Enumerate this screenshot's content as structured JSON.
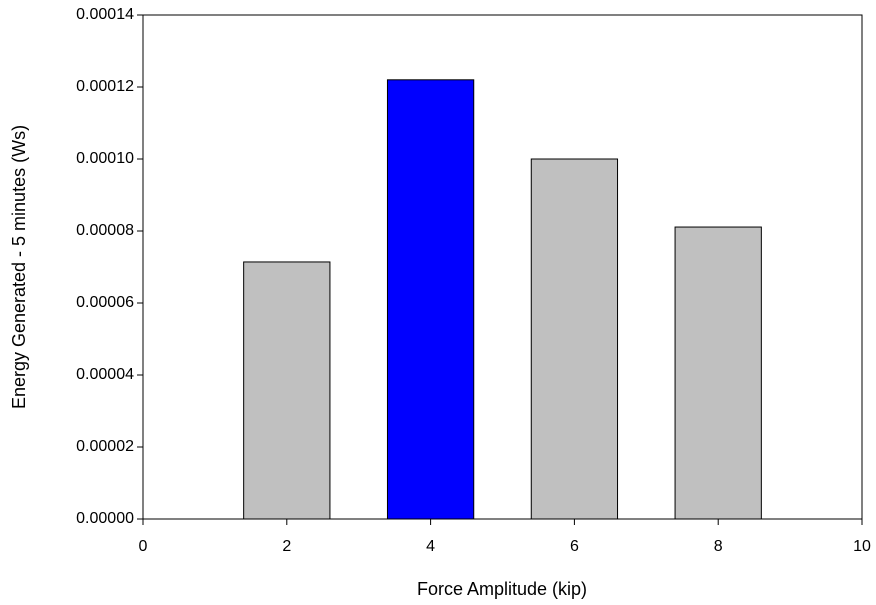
{
  "chart_data": {
    "type": "bar",
    "x_label": "Force Amplitude (kip)",
    "y_label": "Energy Generated - 5 minutes (Ws)",
    "x": [
      2,
      4,
      6,
      8
    ],
    "values": [
      7.14e-05,
      0.000122,
      0.0001,
      8.11e-05
    ],
    "colors": [
      "#c0c0c0",
      "#0000ff",
      "#c0c0c0",
      "#c0c0c0"
    ],
    "xlim": [
      0,
      10
    ],
    "xticks": [
      0,
      2,
      4,
      6,
      8,
      10
    ],
    "ylim": [
      0,
      0.00014
    ],
    "yticks": [
      {
        "value": 0,
        "label": "0.00000"
      },
      {
        "value": 2e-05,
        "label": "0.00002"
      },
      {
        "value": 4e-05,
        "label": "0.00004"
      },
      {
        "value": 6e-05,
        "label": "0.00006"
      },
      {
        "value": 8e-05,
        "label": "0.00008"
      },
      {
        "value": 0.0001,
        "label": "0.00010"
      },
      {
        "value": 0.00012,
        "label": "0.00012"
      },
      {
        "value": 0.00014,
        "label": "0.00014"
      }
    ],
    "grid": false
  }
}
